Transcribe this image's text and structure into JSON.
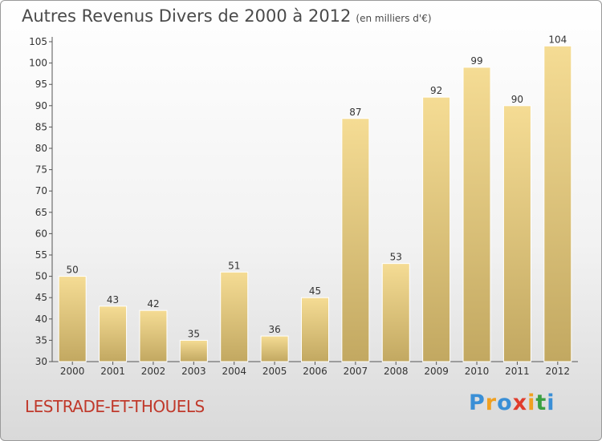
{
  "title": "Autres Revenus Divers de 2000 à 2012",
  "subtitle": "(en milliers d'€)",
  "commune": "LESTRADE-ET-THOUELS",
  "logo": {
    "letters": [
      "P",
      "r",
      "o",
      "x",
      "i",
      "t",
      "i"
    ],
    "colors": [
      "#3a8fd6",
      "#f0a020",
      "#3a8fd6",
      "#e03c2c",
      "#f0a020",
      "#3aa040",
      "#3a8fd6"
    ]
  },
  "chart_data": {
    "type": "bar",
    "categories": [
      "2000",
      "2001",
      "2002",
      "2003",
      "2004",
      "2005",
      "2006",
      "2007",
      "2008",
      "2009",
      "2010",
      "2011",
      "2012"
    ],
    "values": [
      50,
      43,
      42,
      35,
      51,
      36,
      45,
      87,
      53,
      92,
      99,
      90,
      104
    ],
    "data_labels": [
      "50",
      "43",
      "42",
      "35",
      "51",
      "36",
      "45",
      "87",
      "53",
      "92",
      "99",
      "90",
      "104"
    ],
    "ylim": [
      30,
      105
    ],
    "yticks": [
      30,
      35,
      40,
      45,
      50,
      55,
      60,
      65,
      70,
      75,
      80,
      85,
      90,
      95,
      100,
      105
    ],
    "ytick_labels": [
      "30",
      "35",
      "40",
      "45",
      "50",
      "55",
      "60",
      "65",
      "70",
      "75",
      "80",
      "85",
      "90",
      "95",
      "100",
      "105"
    ],
    "title": "Autres Revenus Divers de 2000 à 2012",
    "xlabel": "",
    "ylabel": "",
    "grid": false,
    "bar_color_top": "#f5dc94",
    "bar_color_bottom": "#c2a861"
  }
}
